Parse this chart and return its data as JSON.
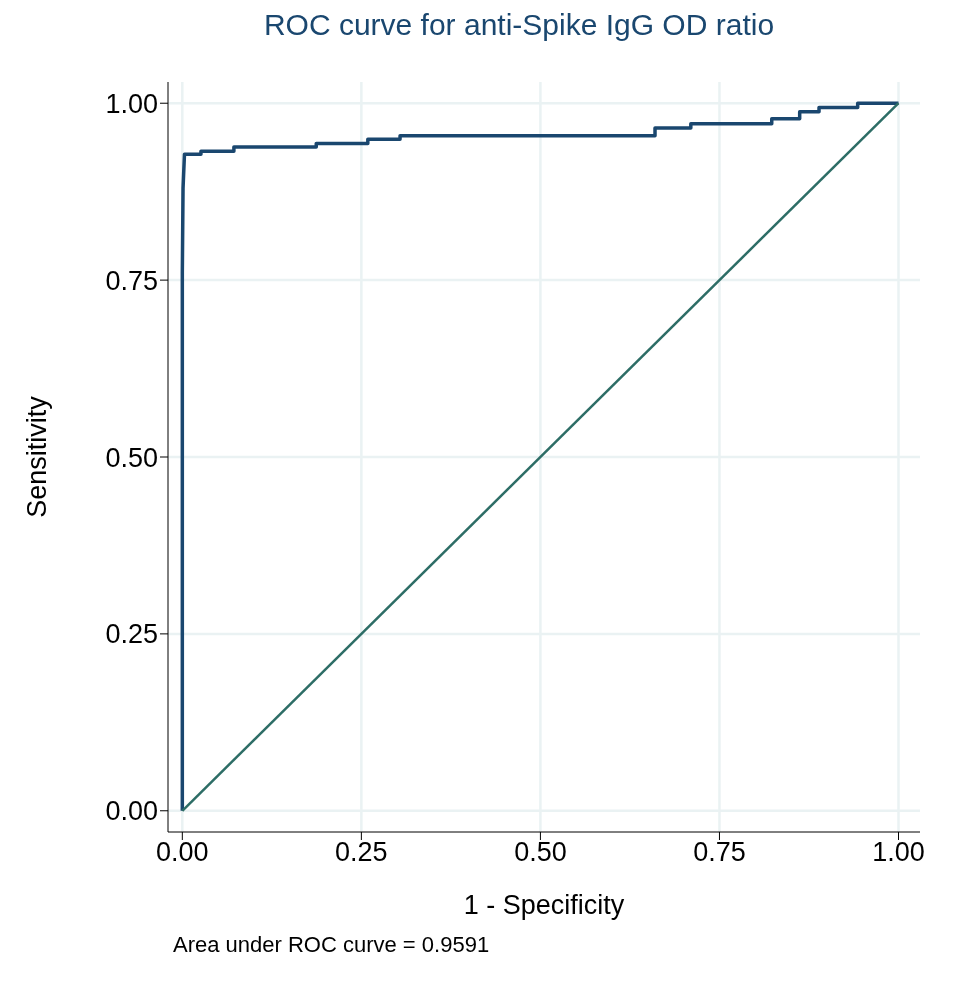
{
  "chart_data": {
    "type": "line",
    "title": "ROC curve for anti-Spike IgG OD ratio",
    "xlabel": "1 - Specificity",
    "ylabel": "Sensitivity",
    "annotations": [
      "Area under ROC curve = 0.9591"
    ],
    "series": [
      {
        "color": "#1a476f",
        "x": [
          0,
          0,
          0.001,
          0.003,
          0.026,
          0.026,
          0.072,
          0.072,
          0.187,
          0.187,
          0.259,
          0.259,
          0.304,
          0.304,
          0.66,
          0.66,
          0.71,
          0.71,
          0.823,
          0.823,
          0.862,
          0.862,
          0.889,
          0.889,
          0.943,
          0.943,
          1
        ],
        "values": [
          0,
          0.76,
          0.88,
          0.928,
          0.928,
          0.932,
          0.932,
          0.938,
          0.938,
          0.943,
          0.943,
          0.949,
          0.949,
          0.954,
          0.954,
          0.965,
          0.965,
          0.971,
          0.971,
          0.978,
          0.978,
          0.988,
          0.988,
          0.994,
          0.994,
          1,
          1
        ]
      },
      {
        "color": "#2d6d66",
        "x": [
          0,
          1
        ],
        "values": [
          0,
          1
        ]
      }
    ],
    "xlim": [
      -0.02,
      1.03
    ],
    "ylim": [
      -0.03,
      1.03
    ],
    "xticks": [
      {
        "value": 0,
        "label": "0.00"
      },
      {
        "value": 0.25,
        "label": "0.25"
      },
      {
        "value": 0.5,
        "label": "0.50"
      },
      {
        "value": 0.75,
        "label": "0.75"
      },
      {
        "value": 1,
        "label": "1.00"
      }
    ],
    "yticks": [
      {
        "value": 0,
        "label": "0.00"
      },
      {
        "value": 0.25,
        "label": "0.25"
      },
      {
        "value": 0.5,
        "label": "0.50"
      },
      {
        "value": 0.75,
        "label": "0.75"
      },
      {
        "value": 1,
        "label": "1.00"
      }
    ],
    "grid": true,
    "marker": "none",
    "line_style": "solid"
  }
}
